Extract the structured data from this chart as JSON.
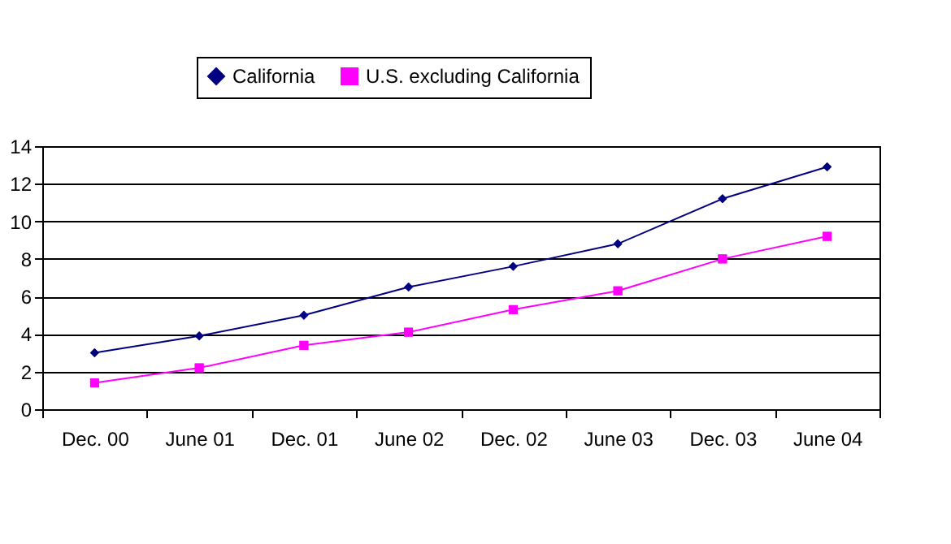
{
  "chart_data": {
    "type": "line",
    "categories": [
      "Dec. 00",
      "June 01",
      "Dec. 01",
      "June 02",
      "Dec. 02",
      "June 03",
      "Dec. 03",
      "June 04"
    ],
    "series": [
      {
        "name": "California",
        "color": "#000080",
        "marker": "diamond",
        "values": [
          3.0,
          3.9,
          5.0,
          6.5,
          7.6,
          8.8,
          11.2,
          12.9
        ]
      },
      {
        "name": "U.S. excluding California",
        "color": "#ff00ff",
        "marker": "square",
        "values": [
          1.4,
          2.2,
          3.4,
          4.1,
          5.3,
          6.3,
          8.0,
          9.2
        ]
      }
    ],
    "ylim": [
      0,
      14
    ],
    "yticks": [
      0,
      2,
      4,
      6,
      8,
      10,
      12,
      14
    ],
    "grid": "y",
    "legend": "top",
    "line_style": "solid"
  }
}
